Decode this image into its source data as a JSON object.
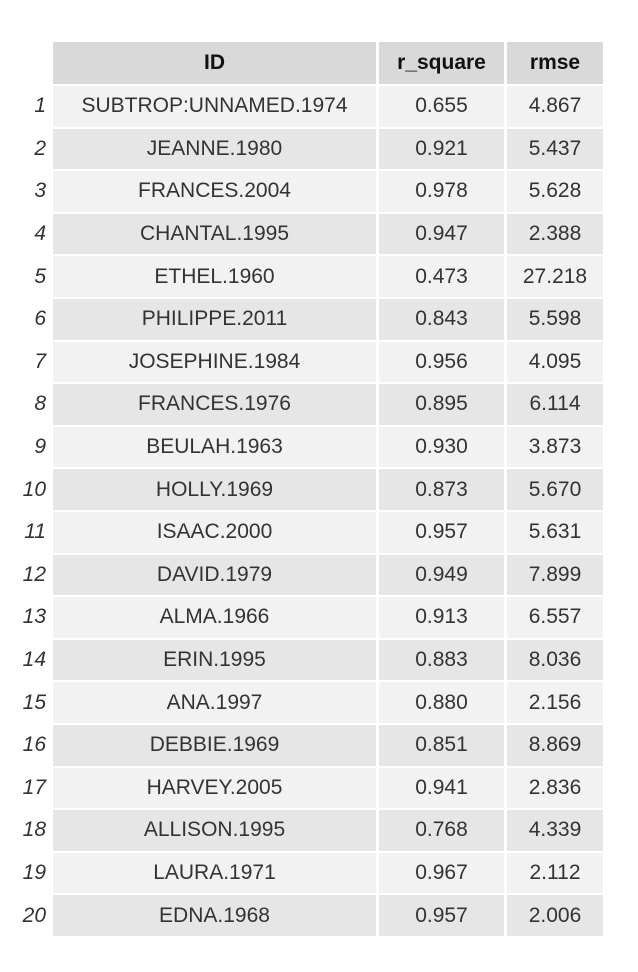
{
  "table": {
    "columns": [
      "",
      "ID",
      "r_square",
      "rmse"
    ],
    "rows": [
      {
        "n": "1",
        "id": "SUBTROP:UNNAMED.1974",
        "r_square": "0.655",
        "rmse": "4.867"
      },
      {
        "n": "2",
        "id": "JEANNE.1980",
        "r_square": "0.921",
        "rmse": "5.437"
      },
      {
        "n": "3",
        "id": "FRANCES.2004",
        "r_square": "0.978",
        "rmse": "5.628"
      },
      {
        "n": "4",
        "id": "CHANTAL.1995",
        "r_square": "0.947",
        "rmse": "2.388"
      },
      {
        "n": "5",
        "id": "ETHEL.1960",
        "r_square": "0.473",
        "rmse": "27.218"
      },
      {
        "n": "6",
        "id": "PHILIPPE.2011",
        "r_square": "0.843",
        "rmse": "5.598"
      },
      {
        "n": "7",
        "id": "JOSEPHINE.1984",
        "r_square": "0.956",
        "rmse": "4.095"
      },
      {
        "n": "8",
        "id": "FRANCES.1976",
        "r_square": "0.895",
        "rmse": "6.114"
      },
      {
        "n": "9",
        "id": "BEULAH.1963",
        "r_square": "0.930",
        "rmse": "3.873"
      },
      {
        "n": "10",
        "id": "HOLLY.1969",
        "r_square": "0.873",
        "rmse": "5.670"
      },
      {
        "n": "11",
        "id": "ISAAC.2000",
        "r_square": "0.957",
        "rmse": "5.631"
      },
      {
        "n": "12",
        "id": "DAVID.1979",
        "r_square": "0.949",
        "rmse": "7.899"
      },
      {
        "n": "13",
        "id": "ALMA.1966",
        "r_square": "0.913",
        "rmse": "6.557"
      },
      {
        "n": "14",
        "id": "ERIN.1995",
        "r_square": "0.883",
        "rmse": "8.036"
      },
      {
        "n": "15",
        "id": "ANA.1997",
        "r_square": "0.880",
        "rmse": "2.156"
      },
      {
        "n": "16",
        "id": "DEBBIE.1969",
        "r_square": "0.851",
        "rmse": "8.869"
      },
      {
        "n": "17",
        "id": "HARVEY.2005",
        "r_square": "0.941",
        "rmse": "2.836"
      },
      {
        "n": "18",
        "id": "ALLISON.1995",
        "r_square": "0.768",
        "rmse": "4.339"
      },
      {
        "n": "19",
        "id": "LAURA.1971",
        "r_square": "0.967",
        "rmse": "2.112"
      },
      {
        "n": "20",
        "id": "EDNA.1968",
        "r_square": "0.957",
        "rmse": "2.006"
      }
    ]
  }
}
